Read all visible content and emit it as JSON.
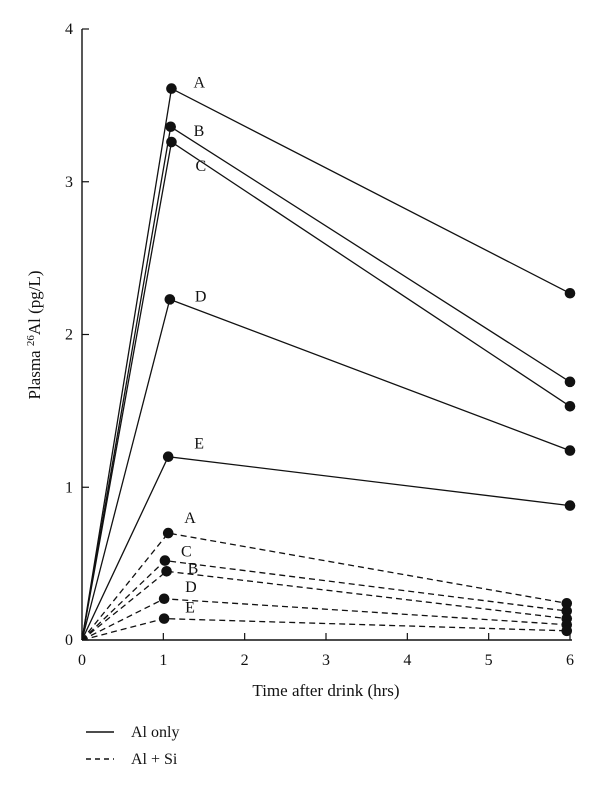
{
  "chart_data": {
    "type": "line",
    "title": "",
    "xlabel": "Time after drink (hrs)",
    "ylabel": {
      "prefix": "Plasma ",
      "superscript": "26",
      "suffix": "Al (pg/L)"
    },
    "xlim": [
      0,
      6
    ],
    "ylim": [
      0,
      4
    ],
    "xticks": [
      0,
      1,
      2,
      3,
      4,
      5,
      6
    ],
    "yticks": [
      0,
      1,
      2,
      3,
      4
    ],
    "grid": false,
    "legend_position": "bottom-left",
    "legend": [
      {
        "label": "Al only",
        "style": "solid"
      },
      {
        "label": "Al + Si",
        "style": "dashed"
      }
    ],
    "series": [
      {
        "name": "A",
        "group": "Al only",
        "style": "solid",
        "points": [
          [
            0,
            0
          ],
          [
            1.1,
            3.61
          ],
          [
            6,
            2.27
          ]
        ]
      },
      {
        "name": "B",
        "group": "Al only",
        "style": "solid",
        "points": [
          [
            0,
            0
          ],
          [
            1.09,
            3.36
          ],
          [
            6,
            1.69
          ]
        ]
      },
      {
        "name": "C",
        "group": "Al only",
        "style": "solid",
        "points": [
          [
            0,
            0
          ],
          [
            1.1,
            3.26
          ],
          [
            6,
            1.53
          ]
        ]
      },
      {
        "name": "D",
        "group": "Al only",
        "style": "solid",
        "points": [
          [
            0,
            0
          ],
          [
            1.08,
            2.23
          ],
          [
            6,
            1.24
          ]
        ]
      },
      {
        "name": "E",
        "group": "Al only",
        "style": "solid",
        "points": [
          [
            0,
            0
          ],
          [
            1.06,
            1.2
          ],
          [
            6,
            0.88
          ]
        ]
      },
      {
        "name": "A",
        "group": "Al + Si",
        "style": "dashed",
        "points": [
          [
            0,
            0
          ],
          [
            1.06,
            0.7
          ],
          [
            5.96,
            0.24
          ]
        ]
      },
      {
        "name": "C",
        "group": "Al + Si",
        "style": "dashed",
        "points": [
          [
            0,
            0
          ],
          [
            1.02,
            0.52
          ],
          [
            5.96,
            0.19
          ]
        ]
      },
      {
        "name": "B",
        "group": "Al + Si",
        "style": "dashed",
        "points": [
          [
            0,
            0
          ],
          [
            1.04,
            0.45
          ],
          [
            5.96,
            0.14
          ]
        ]
      },
      {
        "name": "D",
        "group": "Al + Si",
        "style": "dashed",
        "points": [
          [
            0,
            0
          ],
          [
            1.01,
            0.27
          ],
          [
            5.96,
            0.1
          ]
        ]
      },
      {
        "name": "E",
        "group": "Al + Si",
        "style": "dashed",
        "points": [
          [
            0,
            0
          ],
          [
            1.01,
            0.14
          ],
          [
            5.96,
            0.06
          ]
        ]
      }
    ]
  }
}
